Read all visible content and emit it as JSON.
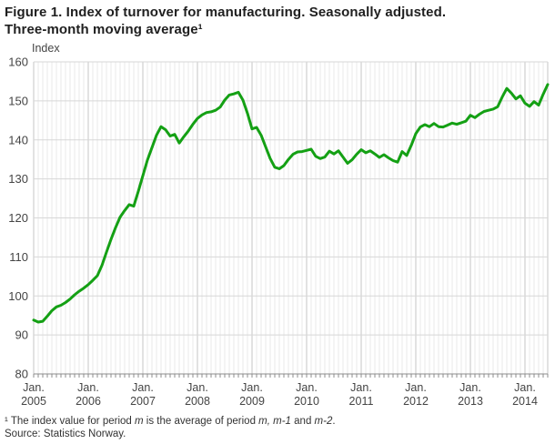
{
  "page": {
    "title_line1": "Figure 1. Index of turnover for manufacturing. Seasonally adjusted.",
    "title_line2": "Three-month moving average¹",
    "footnote_parts": [
      {
        "t": "¹ The index value for period ",
        "italic": false
      },
      {
        "t": "m",
        "italic": true
      },
      {
        "t": " is the average of period ",
        "italic": false
      },
      {
        "t": "m, m-1",
        "italic": true
      },
      {
        "t": " and ",
        "italic": false
      },
      {
        "t": "m-2",
        "italic": true
      },
      {
        "t": ".",
        "italic": false
      }
    ],
    "source": "Source: Statistics Norway."
  },
  "chart_data": {
    "type": "line",
    "title": "Index of turnover for manufacturing. Seasonally adjusted. Three-month moving average",
    "ylabel": "Index",
    "xlabel": "",
    "ylim": [
      80,
      160
    ],
    "ytick_step": 10,
    "ytick_labels": [
      "160",
      "150",
      "140",
      "130",
      "120",
      "110",
      "100",
      "90",
      "80"
    ],
    "grid": true,
    "legend_position": "none",
    "x_start": "2005-01",
    "x_frequency": "monthly",
    "months_per_year": 12,
    "x_tick_labels": [
      {
        "month": "Jan.",
        "year": "2005"
      },
      {
        "month": "Jan.",
        "year": "2006"
      },
      {
        "month": "Jan.",
        "year": "2007"
      },
      {
        "month": "Jan.",
        "year": "2008"
      },
      {
        "month": "Jan.",
        "year": "2009"
      },
      {
        "month": "Jan.",
        "year": "2010"
      },
      {
        "month": "Jan.",
        "year": "2011"
      },
      {
        "month": "Jan.",
        "year": "2012"
      },
      {
        "month": "Jan.",
        "year": "2013"
      },
      {
        "month": "Jan.",
        "year": "2014"
      }
    ],
    "series": [
      {
        "name": "Index of turnover for manufacturing",
        "color": "#14a014",
        "values": [
          93.8,
          93.3,
          93.5,
          94.8,
          96.2,
          97.2,
          97.6,
          98.3,
          99.2,
          100.3,
          101.2,
          102.0,
          102.9,
          104.0,
          105.2,
          107.8,
          111.2,
          114.5,
          117.5,
          120.2,
          121.9,
          123.4,
          123.0,
          126.8,
          130.8,
          134.8,
          138.0,
          141.2,
          143.4,
          142.6,
          141.0,
          141.4,
          139.2,
          140.8,
          142.3,
          144.0,
          145.5,
          146.4,
          147.0,
          147.2,
          147.6,
          148.4,
          150.2,
          151.5,
          151.8,
          152.2,
          150.2,
          146.8,
          142.8,
          143.2,
          141.2,
          138.2,
          135.2,
          133.0,
          132.6,
          133.4,
          135.0,
          136.3,
          136.9,
          137.0,
          137.3,
          137.6,
          135.8,
          135.2,
          135.6,
          137.1,
          136.4,
          137.2,
          135.6,
          134.0,
          134.9,
          136.3,
          137.5,
          136.7,
          137.2,
          136.4,
          135.5,
          136.2,
          135.4,
          134.7,
          134.3,
          137.0,
          136.0,
          138.6,
          141.6,
          143.3,
          143.9,
          143.4,
          144.2,
          143.4,
          143.3,
          143.8,
          144.3,
          144.0,
          144.4,
          144.8,
          146.3,
          145.7,
          146.6,
          147.3,
          147.6,
          147.9,
          148.5,
          151.0,
          153.2,
          152.0,
          150.5,
          151.3,
          149.4,
          148.6,
          149.8,
          148.9,
          151.7,
          154.2
        ]
      }
    ],
    "colors": {
      "line": "#14a014",
      "grid_month": "#e9e9e9",
      "grid_year": "#c6c6c6",
      "grid_horizontal": "#d7d7d7",
      "axis": "#8c8c8c",
      "tick_text": "#444444"
    }
  }
}
